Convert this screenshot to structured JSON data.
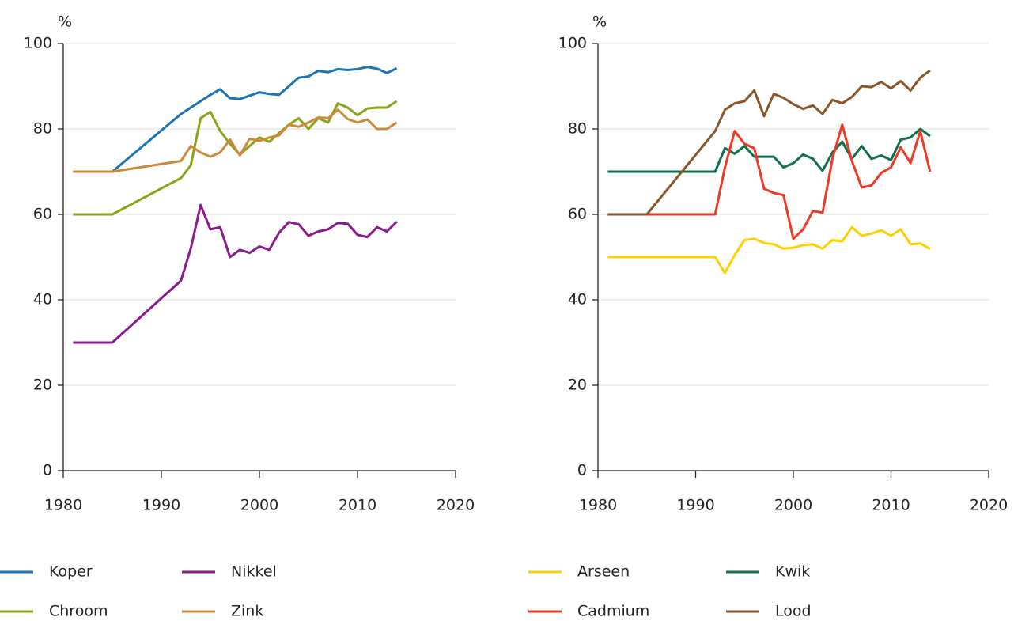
{
  "chart_data": [
    {
      "type": "line",
      "y_label": "%",
      "xlim": [
        1980,
        2020
      ],
      "xticks": [
        1980,
        1990,
        2000,
        2010,
        2020
      ],
      "ylim": [
        0,
        100
      ],
      "yticks": [
        0,
        20,
        40,
        60,
        80,
        100
      ],
      "grid": true,
      "legend": "bottom",
      "x": [
        1981,
        1985,
        1992,
        1993,
        1994,
        1995,
        1996,
        1997,
        1998,
        1999,
        2000,
        2001,
        2002,
        2003,
        2004,
        2005,
        2006,
        2007,
        2008,
        2009,
        2010,
        2011,
        2012,
        2013,
        2014
      ],
      "series": [
        {
          "name": "Koper",
          "color": "#1b74b3",
          "values": [
            70,
            70,
            83.5,
            85,
            86.5,
            88,
            89.3,
            87.2,
            87,
            87.8,
            88.6,
            88.2,
            88,
            90,
            92,
            92.3,
            93.6,
            93.3,
            94,
            93.8,
            94,
            94.5,
            94.1,
            93.1,
            94.2
          ]
        },
        {
          "name": "Nikkel",
          "color": "#8b1a8f",
          "values": [
            30,
            30,
            44.5,
            52,
            62.2,
            56.5,
            57,
            50,
            51.7,
            51,
            52.5,
            51.7,
            55.7,
            58.2,
            57.7,
            55,
            56,
            56.5,
            58,
            57.8,
            55.2,
            54.7,
            57,
            56,
            58.3
          ]
        },
        {
          "name": "Chroom",
          "color": "#8aa31a",
          "values": [
            60,
            60,
            68.5,
            71.5,
            82.5,
            84,
            79.5,
            76.5,
            74,
            76,
            78,
            77,
            79,
            81,
            82.5,
            80,
            82.5,
            81.5,
            86,
            85,
            83.2,
            84.8,
            85,
            85,
            86.5
          ]
        },
        {
          "name": "Zink",
          "color": "#cc8a3a",
          "values": [
            70,
            70,
            72.5,
            76,
            74.5,
            73.5,
            74.5,
            77.5,
            73.8,
            77.7,
            77.2,
            78,
            78.5,
            81,
            80.5,
            81.5,
            82.7,
            82.5,
            84.5,
            82.3,
            81.5,
            82.2,
            80,
            80,
            81.5
          ]
        }
      ]
    },
    {
      "type": "line",
      "y_label": "%",
      "xlim": [
        1980,
        2020
      ],
      "xticks": [
        1980,
        1990,
        2000,
        2010,
        2020
      ],
      "ylim": [
        0,
        100
      ],
      "yticks": [
        0,
        20,
        40,
        60,
        80,
        100
      ],
      "grid": true,
      "legend": "bottom",
      "x": [
        1981,
        1985,
        1992,
        1993,
        1994,
        1995,
        1996,
        1997,
        1998,
        1999,
        2000,
        2001,
        2002,
        2003,
        2004,
        2005,
        2006,
        2007,
        2008,
        2009,
        2010,
        2011,
        2012,
        2013,
        2014
      ],
      "series": [
        {
          "name": "Arseen",
          "color": "#ffd000",
          "values": [
            50,
            50,
            50,
            46.3,
            50.5,
            54,
            54.3,
            53.3,
            53,
            52,
            52.2,
            52.8,
            53,
            52,
            54,
            53.7,
            57,
            55,
            55.5,
            56.3,
            55,
            56.5,
            53,
            53.2,
            51.9
          ]
        },
        {
          "name": "Kwik",
          "color": "#11704a",
          "values": [
            70,
            70,
            70,
            75.5,
            74.2,
            76,
            73.5,
            73.5,
            73.5,
            71,
            72,
            74,
            73,
            70.2,
            74.5,
            77,
            73,
            76,
            73,
            73.8,
            72.7,
            77.5,
            78,
            80,
            78.3
          ]
        },
        {
          "name": "Cadmium",
          "color": "#ee3a24",
          "values": [
            60,
            60,
            60,
            71,
            79.5,
            76.5,
            75.5,
            66,
            65,
            64.5,
            54.3,
            56.5,
            60.8,
            60.4,
            73,
            81,
            72.5,
            66.3,
            66.8,
            69.7,
            71,
            75.7,
            72,
            79.5,
            70
          ]
        },
        {
          "name": "Lood",
          "color": "#8a5528",
          "values": [
            60,
            60,
            79.5,
            84.5,
            86,
            86.5,
            89,
            83,
            88.2,
            87.3,
            85.8,
            84.7,
            85.5,
            83.5,
            86.8,
            86,
            87.5,
            90,
            89.8,
            91,
            89.5,
            91.2,
            89,
            92,
            93.7
          ]
        }
      ]
    }
  ]
}
